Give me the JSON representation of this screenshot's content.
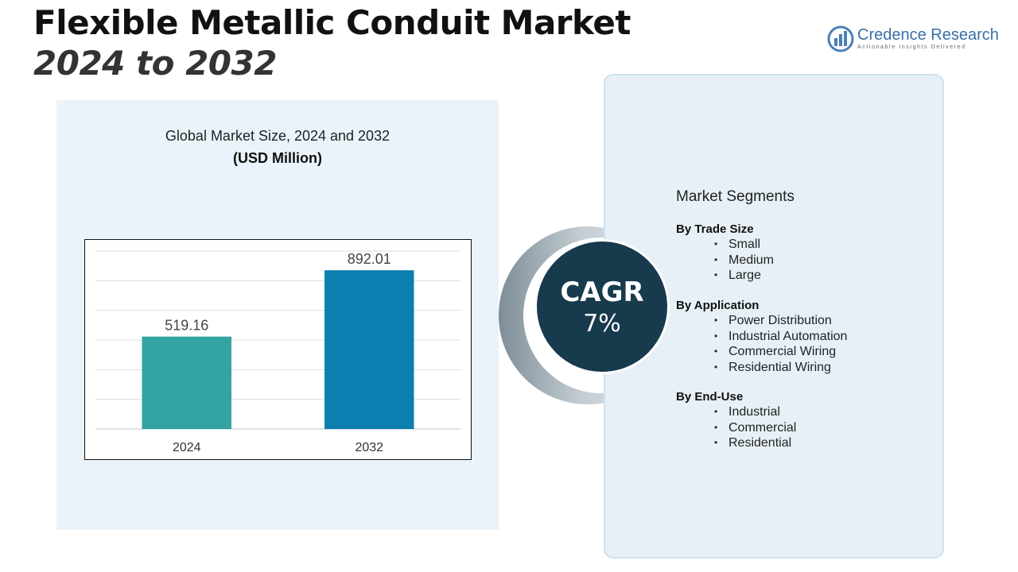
{
  "title": {
    "line1": "Flexible Metallic Conduit Market",
    "line2": "2024 to 2032"
  },
  "logo": {
    "name": "Credence Research",
    "tagline": "Actionable Insights Delivered"
  },
  "chart_data": {
    "type": "bar",
    "title": "Global Market Size, 2024 and 2032",
    "subtitle": "(USD Million)",
    "categories": [
      "2024",
      "2032"
    ],
    "values": [
      519.16,
      892.01
    ],
    "value_labels": [
      "519.16",
      "892.01"
    ],
    "colors": [
      "#33a3a3",
      "#0a7fb0"
    ],
    "ylim": [
      0,
      1000
    ],
    "grid": true,
    "xlabel": "",
    "ylabel": ""
  },
  "cagr": {
    "label": "CAGR",
    "value": "7%"
  },
  "segments": {
    "heading": "Market Segments",
    "groups": [
      {
        "label": "By Trade Size",
        "items": [
          "Small",
          "Medium",
          "Large"
        ]
      },
      {
        "label": "By Application",
        "items": [
          "Power Distribution",
          "Industrial Automation",
          "Commercial Wiring",
          "Residential Wiring"
        ]
      },
      {
        "label": "By End-Use",
        "items": [
          "Industrial",
          "Commercial",
          "Residential"
        ]
      }
    ]
  }
}
